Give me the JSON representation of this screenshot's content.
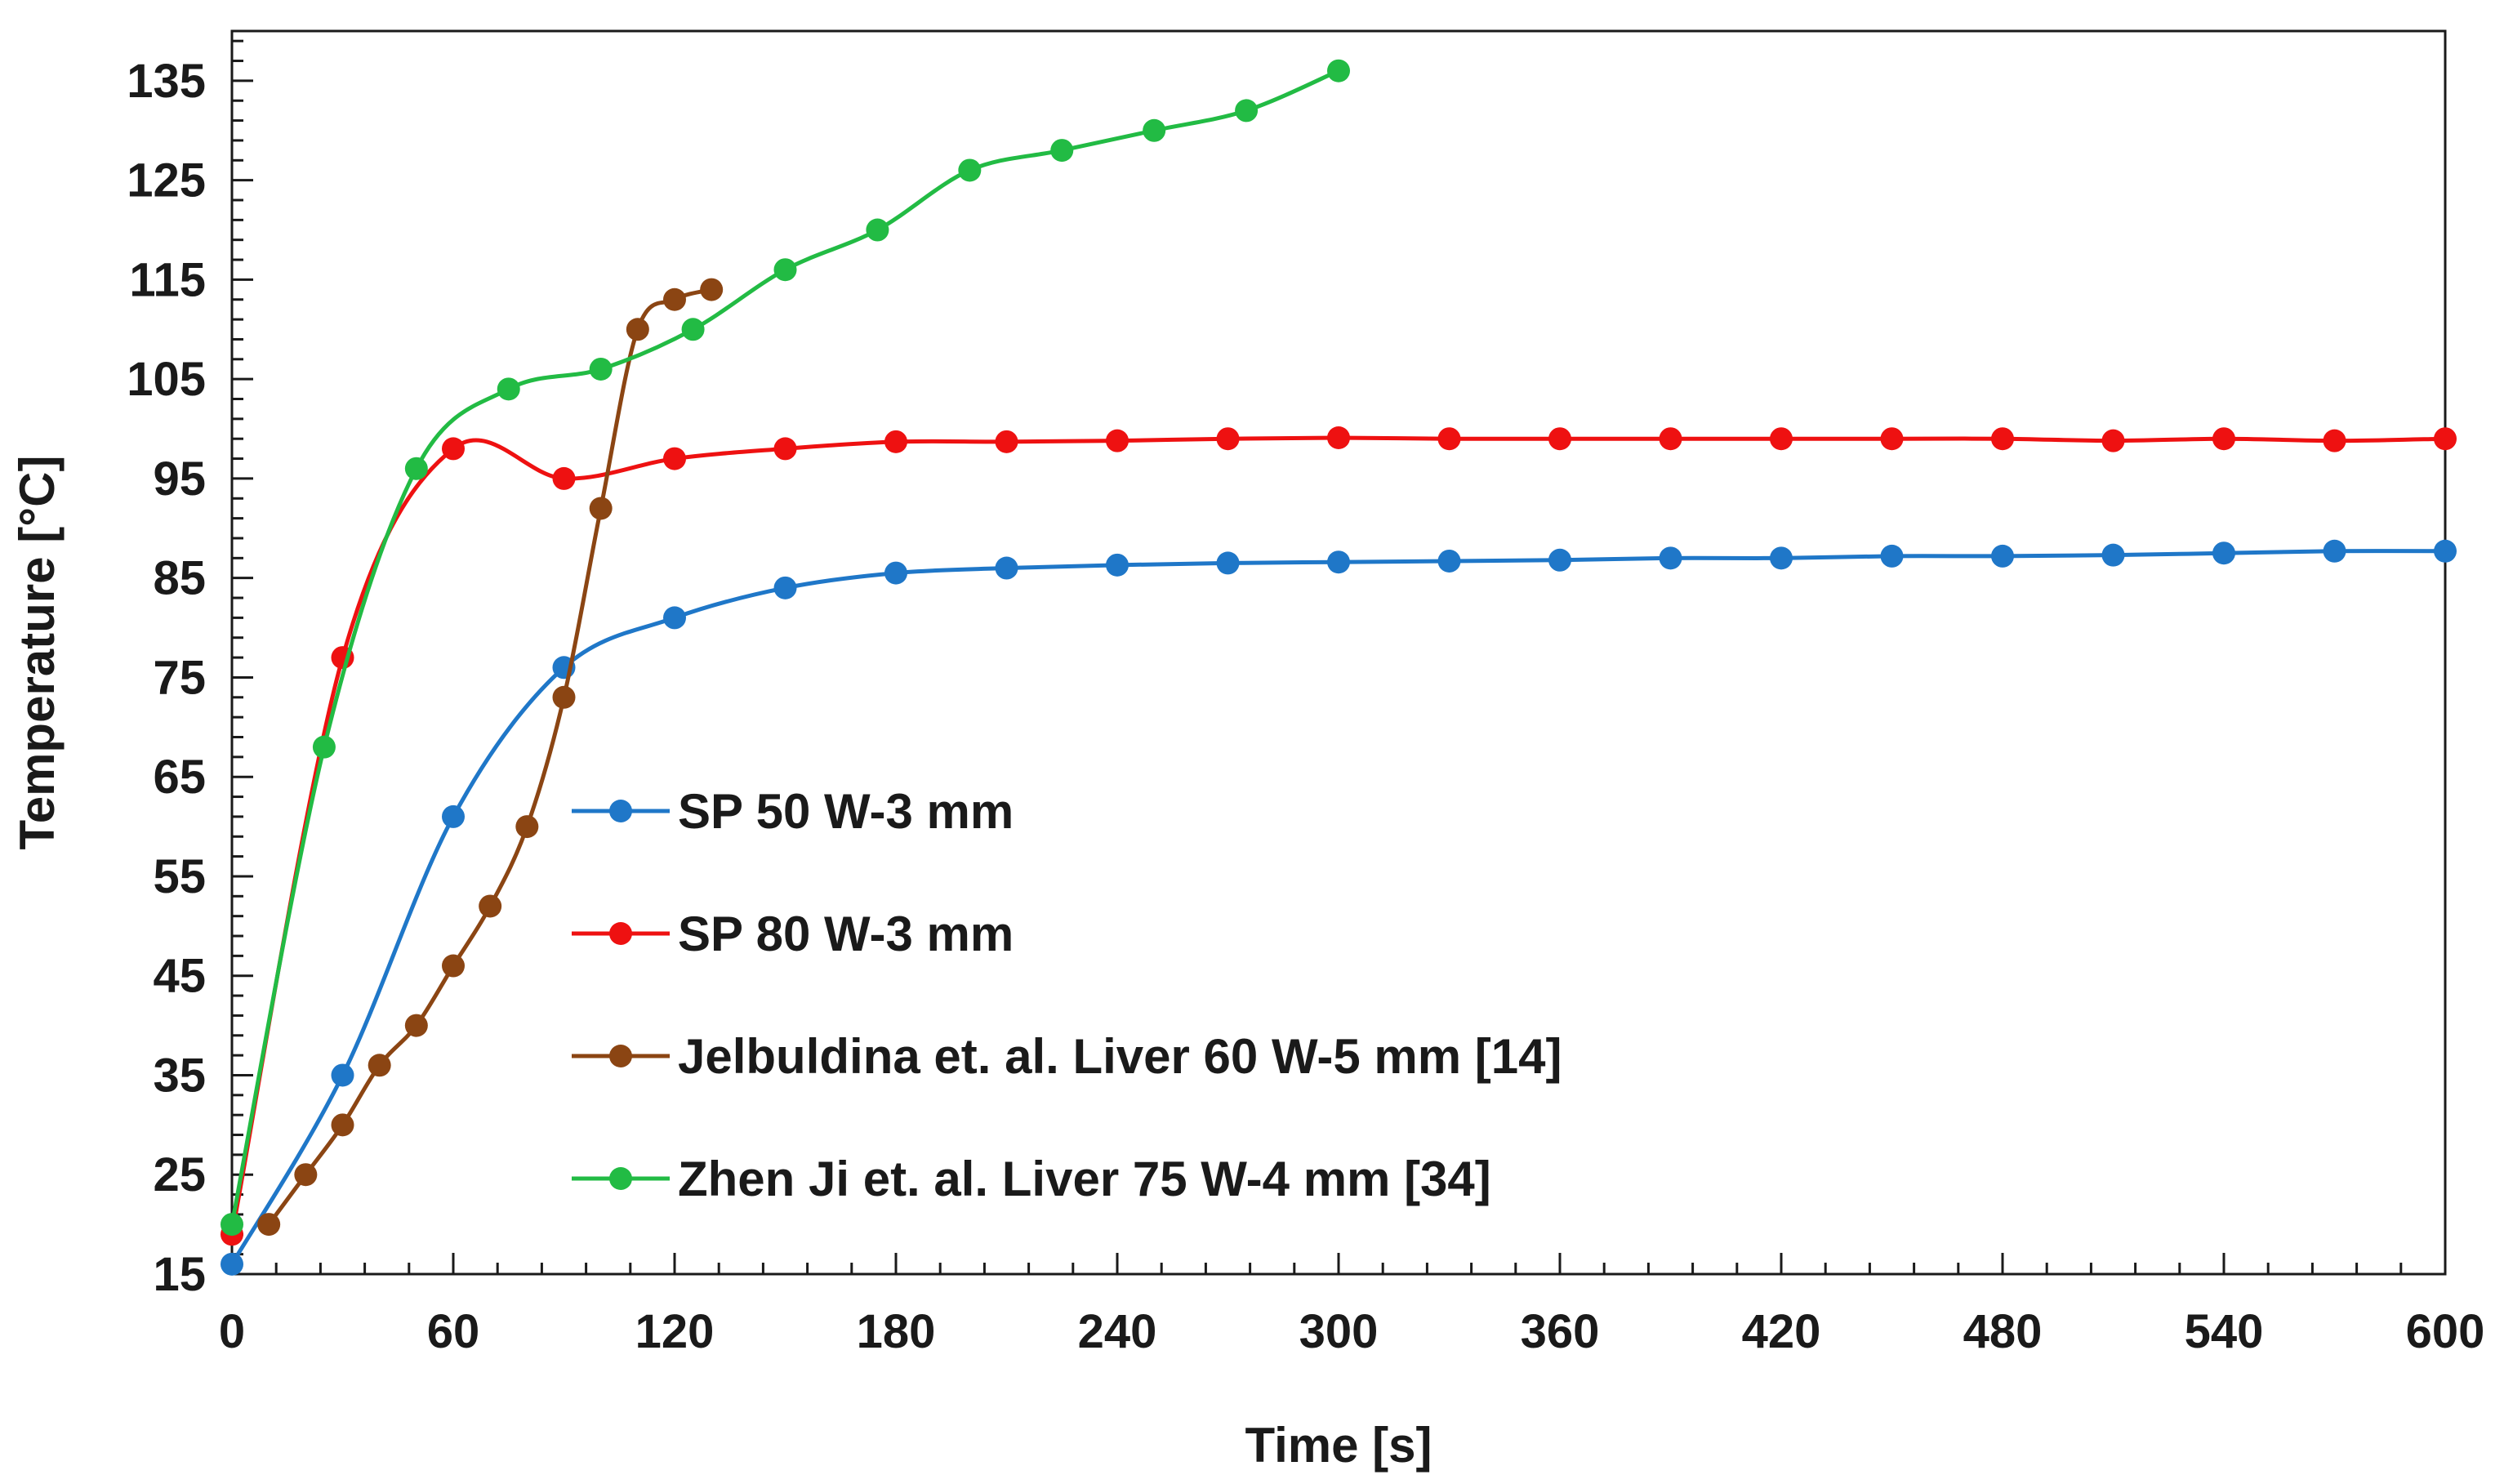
{
  "chart_data": {
    "type": "line",
    "title": "",
    "xlabel": "Time [s]",
    "ylabel": "Temperature [°C]",
    "xlim": [
      0,
      600
    ],
    "ylim": [
      15,
      140
    ],
    "xticks": [
      0,
      60,
      120,
      180,
      240,
      300,
      360,
      420,
      480,
      540,
      600
    ],
    "yticks": [
      15,
      25,
      35,
      45,
      55,
      65,
      75,
      85,
      95,
      105,
      115,
      125,
      135
    ],
    "grid": false,
    "legend_position": "center-left",
    "series": [
      {
        "name": "SP 50 W-3 mm",
        "color": "#1f77c8",
        "x": [
          0,
          30,
          60,
          90,
          120,
          150,
          180,
          210,
          240,
          270,
          300,
          330,
          360,
          390,
          420,
          450,
          480,
          510,
          540,
          570,
          600
        ],
        "y": [
          16,
          35,
          61,
          76,
          81,
          84,
          85.5,
          86,
          86.3,
          86.5,
          86.6,
          86.7,
          86.8,
          87,
          87,
          87.2,
          87.2,
          87.3,
          87.5,
          87.7,
          87.7
        ]
      },
      {
        "name": "SP 80 W-3 mm",
        "color": "#ee1111",
        "x": [
          0,
          30,
          60,
          90,
          120,
          150,
          180,
          210,
          240,
          270,
          300,
          330,
          360,
          390,
          420,
          450,
          480,
          510,
          540,
          570,
          600
        ],
        "y": [
          19,
          77,
          98,
          95,
          97,
          98,
          98.7,
          98.7,
          98.8,
          99,
          99.1,
          99,
          99,
          99,
          99,
          99,
          99,
          98.8,
          99,
          98.8,
          99
        ]
      },
      {
        "name": "Jelbuldina et. al. Liver 60 W-5 mm [14]",
        "color": "#8b4513",
        "x": [
          10,
          20,
          30,
          40,
          50,
          60,
          70,
          80,
          90,
          100,
          110,
          120,
          130
        ],
        "y": [
          20,
          25,
          30,
          36,
          40,
          46,
          52,
          60,
          73,
          92,
          110,
          113,
          114
        ]
      },
      {
        "name": "Zhen Ji et. al. Liver 75 W-4 mm [34]",
        "color": "#22bb44",
        "x": [
          0,
          25,
          50,
          75,
          100,
          125,
          150,
          175,
          200,
          225,
          250,
          275,
          300
        ],
        "y": [
          20,
          68,
          96,
          104,
          106,
          110,
          116,
          120,
          126,
          128,
          130,
          132,
          136
        ]
      }
    ]
  }
}
